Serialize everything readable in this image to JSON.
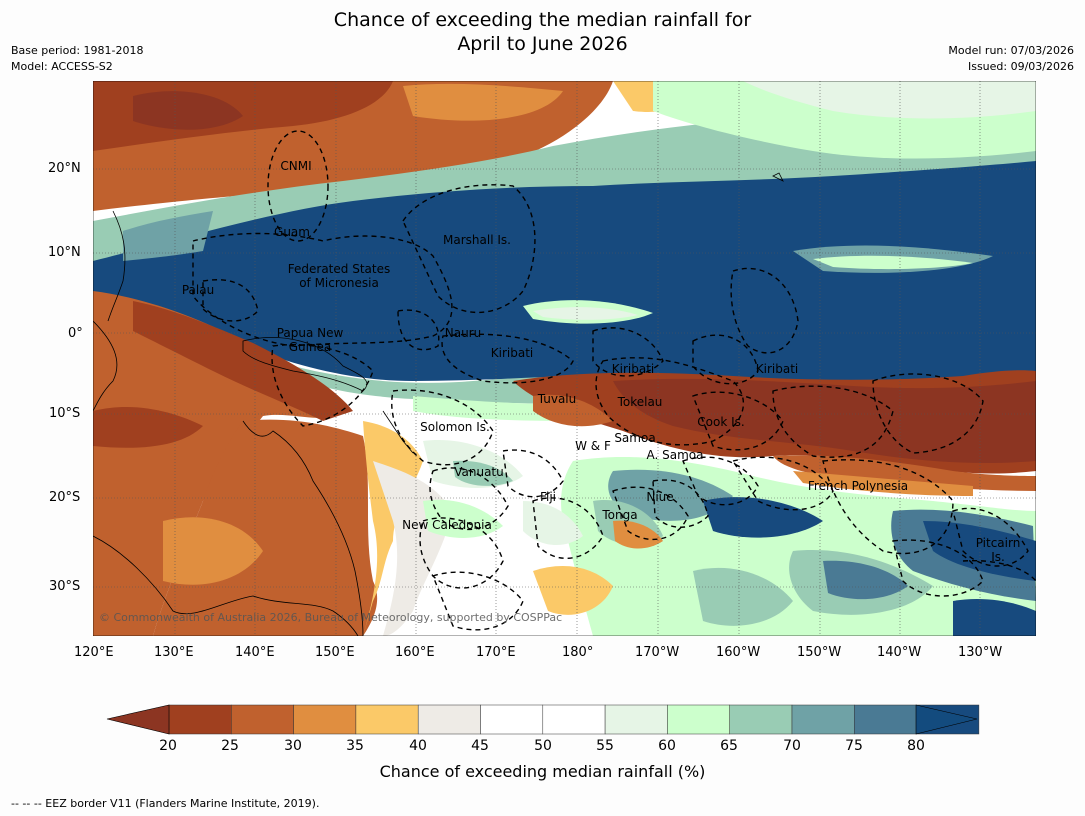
{
  "title_line1": "Chance of exceeding the median rainfall for",
  "title_line2": "April to June 2026",
  "meta_left": {
    "base_period": "Base period: 1981-2018",
    "model": "Model: ACCESS-S2"
  },
  "meta_right": {
    "model_run": "Model run: 07/03/2026",
    "issued": "Issued: 09/03/2026"
  },
  "lat_ticks": [
    "20°N",
    "10°N",
    "0°",
    "10°S",
    "20°S",
    "30°S"
  ],
  "lon_ticks": [
    "120°E",
    "130°E",
    "140°E",
    "150°E",
    "160°E",
    "170°E",
    "180°",
    "170°W",
    "160°W",
    "150°W",
    "140°W",
    "130°W"
  ],
  "regions": [
    {
      "name": "CNMI"
    },
    {
      "name": "Guam"
    },
    {
      "name": "Marshall Is."
    },
    {
      "name": "Federated States"
    },
    {
      "name": "of Micronesia"
    },
    {
      "name": "Palau"
    },
    {
      "name": "Papua New"
    },
    {
      "name": "Guinea"
    },
    {
      "name": "Nauru"
    },
    {
      "name": "Kiribati"
    },
    {
      "name": "Kiribati"
    },
    {
      "name": "Kiribati"
    },
    {
      "name": "Tuvalu"
    },
    {
      "name": "Tokelau"
    },
    {
      "name": "Cook Is."
    },
    {
      "name": "Solomon Is."
    },
    {
      "name": "W & F"
    },
    {
      "name": "Samoa"
    },
    {
      "name": "A. Samoa"
    },
    {
      "name": "Vanuatu"
    },
    {
      "name": "Fiji"
    },
    {
      "name": "Niue"
    },
    {
      "name": "French Polynesia"
    },
    {
      "name": "Tonga"
    },
    {
      "name": "New Caledonia"
    },
    {
      "name": "Pitcairn"
    },
    {
      "name": "Is."
    }
  ],
  "copyright": "© Commonwealth of Australia 2026, Bureau of Meteorology, supported by COSPPac",
  "colorbar": {
    "ticks": [
      "20",
      "25",
      "30",
      "35",
      "40",
      "45",
      "50",
      "55",
      "60",
      "65",
      "70",
      "75",
      "80"
    ],
    "colors": [
      "#a0401f",
      "#c0612e",
      "#e08e40",
      "#fbc968",
      "#eeebe6",
      "#ffffff",
      "#ffffff",
      "#e6f5e6",
      "#ccffcc",
      "#99ccb4",
      "#6fa2a6",
      "#4a7a94",
      "#174a7e"
    ],
    "under_color": "#8c3522",
    "over_color": "#134b7e",
    "label": "Chance of exceeding median rainfall (%)"
  },
  "footnote": "--  --  -- EEZ border V11 (Flanders Marine Institute, 2019)."
}
